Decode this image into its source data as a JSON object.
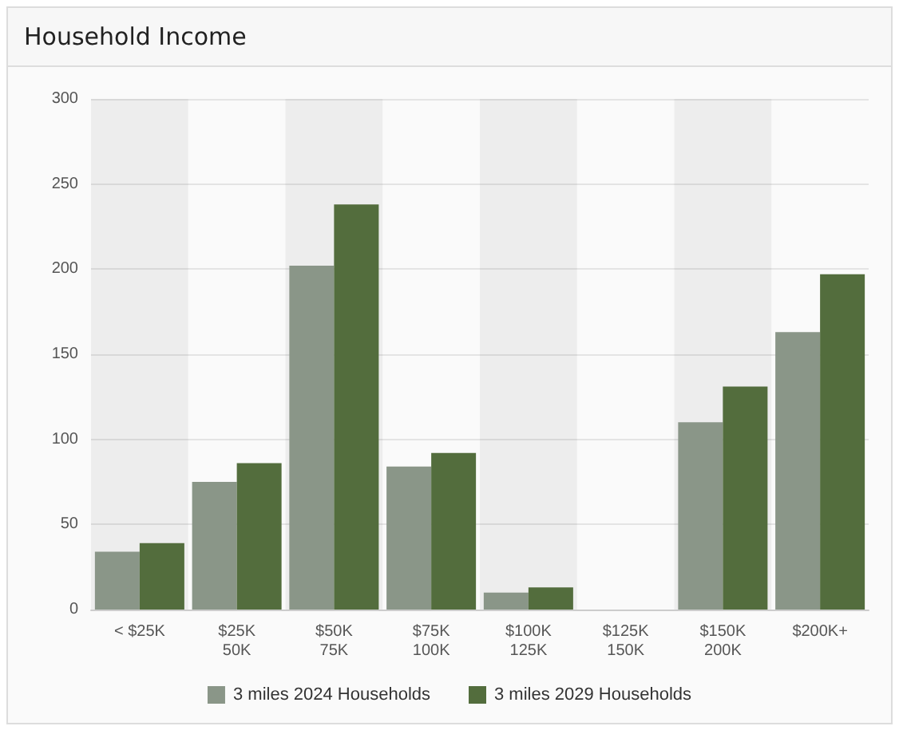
{
  "chart_data": {
    "type": "bar",
    "title": "Household Income",
    "categories": [
      "< $25K",
      "$25K\n50K",
      "$50K\n75K",
      "$75K\n100K",
      "$100K\n125K",
      "$125K\n150K",
      "$150K\n200K",
      "$200K+"
    ],
    "series": [
      {
        "name": "3 miles 2024 Households",
        "color": "#8a9688",
        "values": [
          34,
          75,
          202,
          84,
          10,
          0,
          110,
          163
        ]
      },
      {
        "name": "3 miles 2029 Households",
        "color": "#536d3d",
        "values": [
          39,
          86,
          238,
          92,
          13,
          0,
          131,
          197
        ]
      }
    ],
    "ylim": [
      0,
      300
    ],
    "yticks": [
      0,
      50,
      100,
      150,
      200,
      250,
      300
    ],
    "grid": "y",
    "legend": "bottom"
  }
}
